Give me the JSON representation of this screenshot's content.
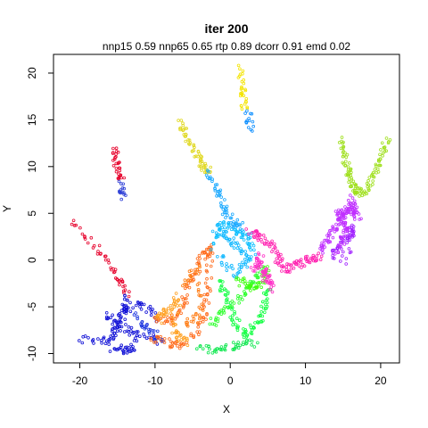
{
  "chart_data": {
    "type": "scatter",
    "title": "iter 200",
    "subtitle": "nnp15 0.59 nnp65 0.65 rtp 0.89 dcorr 0.91 emd 0.02",
    "xlabel": "X",
    "ylabel": "Y",
    "xlim": [
      -23.5,
      22.5
    ],
    "ylim": [
      -11,
      22
    ],
    "xticks": [
      -20,
      -10,
      0,
      10,
      20
    ],
    "yticks": [
      -10,
      -5,
      0,
      5,
      10,
      15,
      20
    ],
    "grid": false,
    "legend": "none",
    "marker": "small open circles",
    "structures": [
      {
        "color": "#e6002a",
        "points": [
          [
            -21.2,
            4.0
          ],
          [
            -17.5,
            1.0
          ],
          [
            -15.0,
            -1.6
          ],
          [
            -13.6,
            -3.8
          ]
        ]
      },
      {
        "color": "#e6002a",
        "points": [
          [
            -15.4,
            11.8
          ],
          [
            -15.0,
            10.0
          ],
          [
            -14.5,
            8.5
          ]
        ]
      },
      {
        "color": "#2a3cd6",
        "points": [
          [
            -14.5,
            8.3
          ],
          [
            -14.2,
            6.6
          ]
        ]
      },
      {
        "color": "#1010d6",
        "points": [
          [
            -13.8,
            -4.0
          ],
          [
            -14.2,
            -5.5
          ],
          [
            -15.2,
            -7.5
          ],
          [
            -16.0,
            -8.5
          ],
          [
            -20.0,
            -8.6
          ]
        ]
      },
      {
        "color": "#1010d6",
        "points": [
          [
            -14.2,
            -5.5
          ],
          [
            -12.0,
            -4.6
          ],
          [
            -9.5,
            -6.2
          ]
        ]
      },
      {
        "color": "#1010d6",
        "points": [
          [
            -16.5,
            -5.7
          ],
          [
            -14.5,
            -7.0
          ],
          [
            -12.5,
            -8.0
          ],
          [
            -9.5,
            -8.6
          ]
        ]
      },
      {
        "color": "#1010d6",
        "points": [
          [
            -15.8,
            -9.3
          ],
          [
            -14.0,
            -9.6
          ],
          [
            -12.5,
            -9.0
          ]
        ]
      },
      {
        "color": "#1b35e0",
        "points": [
          [
            -12.5,
            -6.0
          ],
          [
            -11.0,
            -7.5
          ],
          [
            -9.0,
            -8.6
          ]
        ]
      },
      {
        "color": "#ff6a1a",
        "points": [
          [
            -10.5,
            -8.3
          ],
          [
            -8.0,
            -9.0
          ],
          [
            -6.0,
            -9.2
          ]
        ]
      },
      {
        "color": "#ff6a1a",
        "points": [
          [
            -10.0,
            -6.2
          ],
          [
            -8.0,
            -6.5
          ],
          [
            -6.5,
            -5.0
          ],
          [
            -5.0,
            -2.0
          ],
          [
            -3.5,
            0.5
          ],
          [
            -2.5,
            1.5
          ],
          [
            -3.0,
            -3.0
          ],
          [
            -3.5,
            -6.0
          ],
          [
            -5.0,
            -8.5
          ]
        ]
      },
      {
        "color": "#ff7a10",
        "points": [
          [
            -6.0,
            -2.5
          ],
          [
            -4.5,
            -1.0
          ],
          [
            -4.0,
            -6.0
          ],
          [
            -6.0,
            -7.0
          ]
        ]
      },
      {
        "color": "#e0d820",
        "points": [
          [
            -6.5,
            14.8
          ],
          [
            -6.0,
            13.2
          ],
          [
            -4.5,
            11.5
          ],
          [
            -3.5,
            10.0
          ],
          [
            -3.0,
            9.5
          ]
        ]
      },
      {
        "color": "#f4e400",
        "points": [
          [
            1.3,
            20.6
          ],
          [
            1.6,
            18.0
          ],
          [
            1.9,
            16.2
          ]
        ]
      },
      {
        "color": "#1090ff",
        "points": [
          [
            2.4,
            15.8
          ],
          [
            2.7,
            14.0
          ]
        ]
      },
      {
        "color": "#18a8ff",
        "points": [
          [
            -3.0,
            9.5
          ],
          [
            -1.8,
            7.5
          ],
          [
            -0.8,
            5.5
          ],
          [
            0.5,
            4.0
          ],
          [
            1.5,
            3.5
          ]
        ]
      },
      {
        "color": "#10b8ff",
        "points": [
          [
            -2.0,
            3.5
          ],
          [
            -0.5,
            2.5
          ],
          [
            1.0,
            1.5
          ],
          [
            2.5,
            0.0
          ],
          [
            0.5,
            -1.5
          ],
          [
            -1.5,
            0.5
          ]
        ]
      },
      {
        "color": "#10c0ff",
        "points": [
          [
            -2.5,
            1.5
          ],
          [
            -1.0,
            4.0
          ],
          [
            1.0,
            3.0
          ],
          [
            2.5,
            2.5
          ],
          [
            3.0,
            1.0
          ]
        ]
      },
      {
        "color": "#10ff40",
        "points": [
          [
            -1.5,
            -2.0
          ],
          [
            -0.5,
            -4.0
          ],
          [
            0.5,
            -6.5
          ],
          [
            2.0,
            -8.0
          ],
          [
            3.5,
            -7.0
          ],
          [
            4.5,
            -5.0
          ],
          [
            5.0,
            -3.0
          ]
        ]
      },
      {
        "color": "#30ff30",
        "points": [
          [
            -2.5,
            -7.0
          ],
          [
            -1.0,
            -5.5
          ],
          [
            1.5,
            -4.0
          ],
          [
            3.0,
            -2.5
          ],
          [
            4.0,
            -1.0
          ]
        ]
      },
      {
        "color": "#10e850",
        "points": [
          [
            -4.0,
            -9.5
          ],
          [
            -1.5,
            -9.5
          ],
          [
            1.0,
            -9.2
          ],
          [
            3.5,
            -8.8
          ]
        ]
      },
      {
        "color": "#40ff10",
        "points": [
          [
            1.0,
            -2.0
          ],
          [
            2.5,
            -3.0
          ],
          [
            4.0,
            -2.5
          ],
          [
            5.0,
            -1.0
          ]
        ]
      },
      {
        "color": "#ff20b0",
        "points": [
          [
            2.5,
            3.0
          ],
          [
            4.0,
            2.5
          ],
          [
            5.5,
            1.5
          ],
          [
            6.5,
            0.0
          ],
          [
            7.5,
            -1.0
          ],
          [
            9.0,
            -0.5
          ],
          [
            10.5,
            0.0
          ],
          [
            12.0,
            0.5
          ]
        ]
      },
      {
        "color": "#ff30c8",
        "points": [
          [
            3.5,
            0.5
          ],
          [
            4.5,
            -1.5
          ],
          [
            5.5,
            -3.0
          ],
          [
            4.0,
            0.0
          ],
          [
            3.0,
            -1.0
          ]
        ]
      },
      {
        "color": "#c030ff",
        "points": [
          [
            12.0,
            0.8
          ],
          [
            13.0,
            2.0
          ],
          [
            13.8,
            3.5
          ],
          [
            14.5,
            5.0
          ],
          [
            15.5,
            5.5
          ],
          [
            16.5,
            5.0
          ],
          [
            16.0,
            6.5
          ],
          [
            17.0,
            4.0
          ]
        ]
      },
      {
        "color": "#a020ff",
        "points": [
          [
            13.5,
            0.5
          ],
          [
            14.5,
            1.5
          ],
          [
            15.5,
            2.5
          ],
          [
            16.5,
            3.5
          ],
          [
            15.0,
            -0.5
          ]
        ]
      },
      {
        "color": "#c030ff",
        "points": [
          [
            14.5,
            5.0
          ],
          [
            15.0,
            4.0
          ],
          [
            15.5,
            3.0
          ],
          [
            14.0,
            1.0
          ]
        ]
      },
      {
        "color": "#a0e020",
        "points": [
          [
            14.7,
            12.7
          ],
          [
            15.3,
            11.0
          ],
          [
            15.8,
            9.5
          ],
          [
            16.3,
            8.0
          ],
          [
            16.8,
            7.0
          ],
          [
            18.0,
            7.5
          ],
          [
            19.0,
            9.0
          ],
          [
            20.0,
            11.0
          ],
          [
            21.0,
            12.8
          ]
        ]
      },
      {
        "color": "#ffa020",
        "points": [
          [
            -9.5,
            -6.5
          ],
          [
            -8.5,
            -5.5
          ],
          [
            -7.0,
            -4.0
          ],
          [
            -7.5,
            -8.0
          ],
          [
            -5.5,
            -8.8
          ]
        ]
      }
    ]
  }
}
